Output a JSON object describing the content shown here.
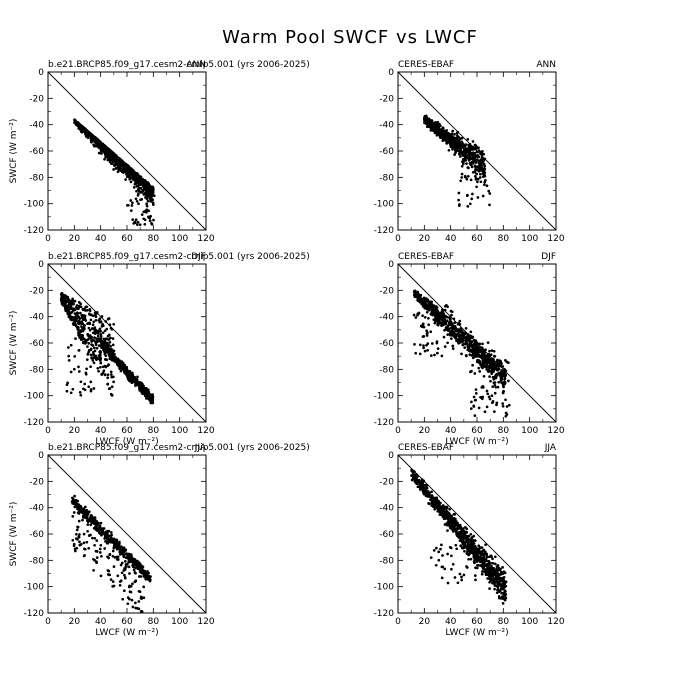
{
  "figure": {
    "title": "Warm Pool SWCF vs LWCF"
  },
  "chart_data": [
    {
      "type": "scatter",
      "left_label": "b.e21.BRCP85.f09_g17.cesm2-cmip5.001 (yrs 2006-2025)",
      "right_label": "ANN",
      "xlabel": "",
      "ylabel": "SWCF (W m⁻²)",
      "xlim": [
        0,
        120
      ],
      "ylim": [
        -120,
        0
      ],
      "xticks": [
        "0",
        "20",
        "40",
        "60",
        "80",
        "100",
        "120"
      ],
      "yticks": [
        "0",
        "-20",
        "-40",
        "-60",
        "-80",
        "-100",
        "-120"
      ],
      "one_to_one_line": true
    },
    {
      "type": "scatter",
      "left_label": "CERES-EBAF",
      "right_label": "ANN",
      "xlabel": "",
      "ylabel": "",
      "xlim": [
        0,
        120
      ],
      "ylim": [
        -120,
        0
      ],
      "xticks": [
        "0",
        "20",
        "40",
        "60",
        "80",
        "100",
        "120"
      ],
      "yticks": [
        "0",
        "-20",
        "-40",
        "-60",
        "-80",
        "-100",
        "-120"
      ],
      "one_to_one_line": true
    },
    {
      "type": "scatter",
      "left_label": "b.e21.BRCP85.f09_g17.cesm2-cmip5.001 (yrs 2006-2025)",
      "right_label": "DJF",
      "xlabel": "LWCF (W m⁻²)",
      "ylabel": "SWCF (W m⁻²)",
      "xlim": [
        0,
        120
      ],
      "ylim": [
        -120,
        0
      ],
      "xticks": [
        "0",
        "20",
        "40",
        "60",
        "80",
        "100",
        "120"
      ],
      "yticks": [
        "0",
        "-20",
        "-40",
        "-60",
        "-80",
        "-100",
        "-120"
      ],
      "one_to_one_line": true
    },
    {
      "type": "scatter",
      "left_label": "CERES-EBAF",
      "right_label": "DJF",
      "xlabel": "LWCF (W m⁻²)",
      "ylabel": "",
      "xlim": [
        0,
        120
      ],
      "ylim": [
        -120,
        0
      ],
      "xticks": [
        "0",
        "20",
        "40",
        "60",
        "80",
        "100",
        "120"
      ],
      "yticks": [
        "0",
        "-20",
        "-40",
        "-60",
        "-80",
        "-100",
        "-120"
      ],
      "one_to_one_line": true
    },
    {
      "type": "scatter",
      "left_label": "b.e21.BRCP85.f09_g17.cesm2-cmip5.001 (yrs 2006-2025)",
      "right_label": "JJA",
      "xlabel": "LWCF (W m⁻²)",
      "ylabel": "SWCF (W m⁻²)",
      "xlim": [
        0,
        120
      ],
      "ylim": [
        -120,
        0
      ],
      "xticks": [
        "0",
        "20",
        "40",
        "60",
        "80",
        "100",
        "120"
      ],
      "yticks": [
        "0",
        "-20",
        "-40",
        "-60",
        "-80",
        "-100",
        "-120"
      ],
      "one_to_one_line": true
    },
    {
      "type": "scatter",
      "left_label": "CERES-EBAF",
      "right_label": "JJA",
      "xlabel": "LWCF (W m⁻²)",
      "ylabel": "",
      "xlim": [
        0,
        120
      ],
      "ylim": [
        -120,
        0
      ],
      "xticks": [
        "0",
        "20",
        "40",
        "60",
        "80",
        "100",
        "120"
      ],
      "yticks": [
        "0",
        "-20",
        "-40",
        "-60",
        "-80",
        "-100",
        "-120"
      ],
      "one_to_one_line": true
    }
  ]
}
